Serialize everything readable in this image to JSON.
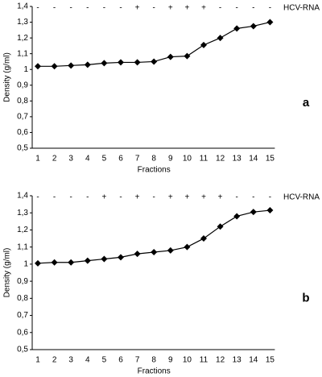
{
  "chart_data": [
    {
      "type": "line",
      "panel_label": "a",
      "annotation_label": "HCV-RNA",
      "annotations": [
        "-",
        "-",
        "-",
        "-",
        "-",
        "-",
        "+",
        "-",
        "+",
        "+",
        "+",
        "-",
        "-",
        "-",
        "-"
      ],
      "y_label": "Density (g/ml)",
      "x_label": "Fractions",
      "categories": [
        "1",
        "2",
        "3",
        "4",
        "5",
        "6",
        "7",
        "8",
        "9",
        "10",
        "11",
        "12",
        "13",
        "14",
        "15"
      ],
      "values": [
        1.02,
        1.02,
        1.025,
        1.03,
        1.04,
        1.045,
        1.045,
        1.05,
        1.08,
        1.085,
        1.155,
        1.2,
        1.26,
        1.275,
        1.3
      ],
      "color": "#000000",
      "ylim": [
        0.5,
        1.4
      ],
      "yticks": [
        {
          "value": 0.5,
          "label": "0,5"
        },
        {
          "value": 0.6,
          "label": "0,6"
        },
        {
          "value": 0.7,
          "label": "0,7"
        },
        {
          "value": 0.8,
          "label": "0,8"
        },
        {
          "value": 0.9,
          "label": "0,9"
        },
        {
          "value": 1,
          "label": "1"
        },
        {
          "value": 1.1,
          "label": "1,1"
        },
        {
          "value": 1.2,
          "label": "1,2"
        },
        {
          "value": 1.3,
          "label": "1,3"
        },
        {
          "value": 1.4,
          "label": "1,4"
        }
      ]
    },
    {
      "type": "line",
      "panel_label": "b",
      "annotation_label": "HCV-RNA",
      "annotations": [
        "-",
        "-",
        "-",
        "-",
        "+",
        "-",
        "+",
        "-",
        "+",
        "+",
        "+",
        "+",
        "-",
        "-",
        "-"
      ],
      "y_label": "Density (g/ml)",
      "x_label": "Fractions",
      "categories": [
        "1",
        "2",
        "3",
        "4",
        "5",
        "6",
        "7",
        "8",
        "9",
        "10",
        "11",
        "12",
        "13",
        "14",
        "15"
      ],
      "values": [
        1.005,
        1.01,
        1.01,
        1.02,
        1.03,
        1.04,
        1.06,
        1.07,
        1.08,
        1.1,
        1.15,
        1.22,
        1.28,
        1.305,
        1.315
      ],
      "color": "#000000",
      "ylim": [
        0.5,
        1.4
      ],
      "yticks": [
        {
          "value": 0.5,
          "label": "0,5"
        },
        {
          "value": 0.6,
          "label": "0,6"
        },
        {
          "value": 0.7,
          "label": "0,7"
        },
        {
          "value": 0.8,
          "label": "0,8"
        },
        {
          "value": 0.9,
          "label": "0,9"
        },
        {
          "value": 1,
          "label": "1"
        },
        {
          "value": 1.1,
          "label": "1,1"
        },
        {
          "value": 1.2,
          "label": "1,2"
        },
        {
          "value": 1.3,
          "label": "1,3"
        },
        {
          "value": 1.4,
          "label": "1,4"
        }
      ]
    }
  ]
}
